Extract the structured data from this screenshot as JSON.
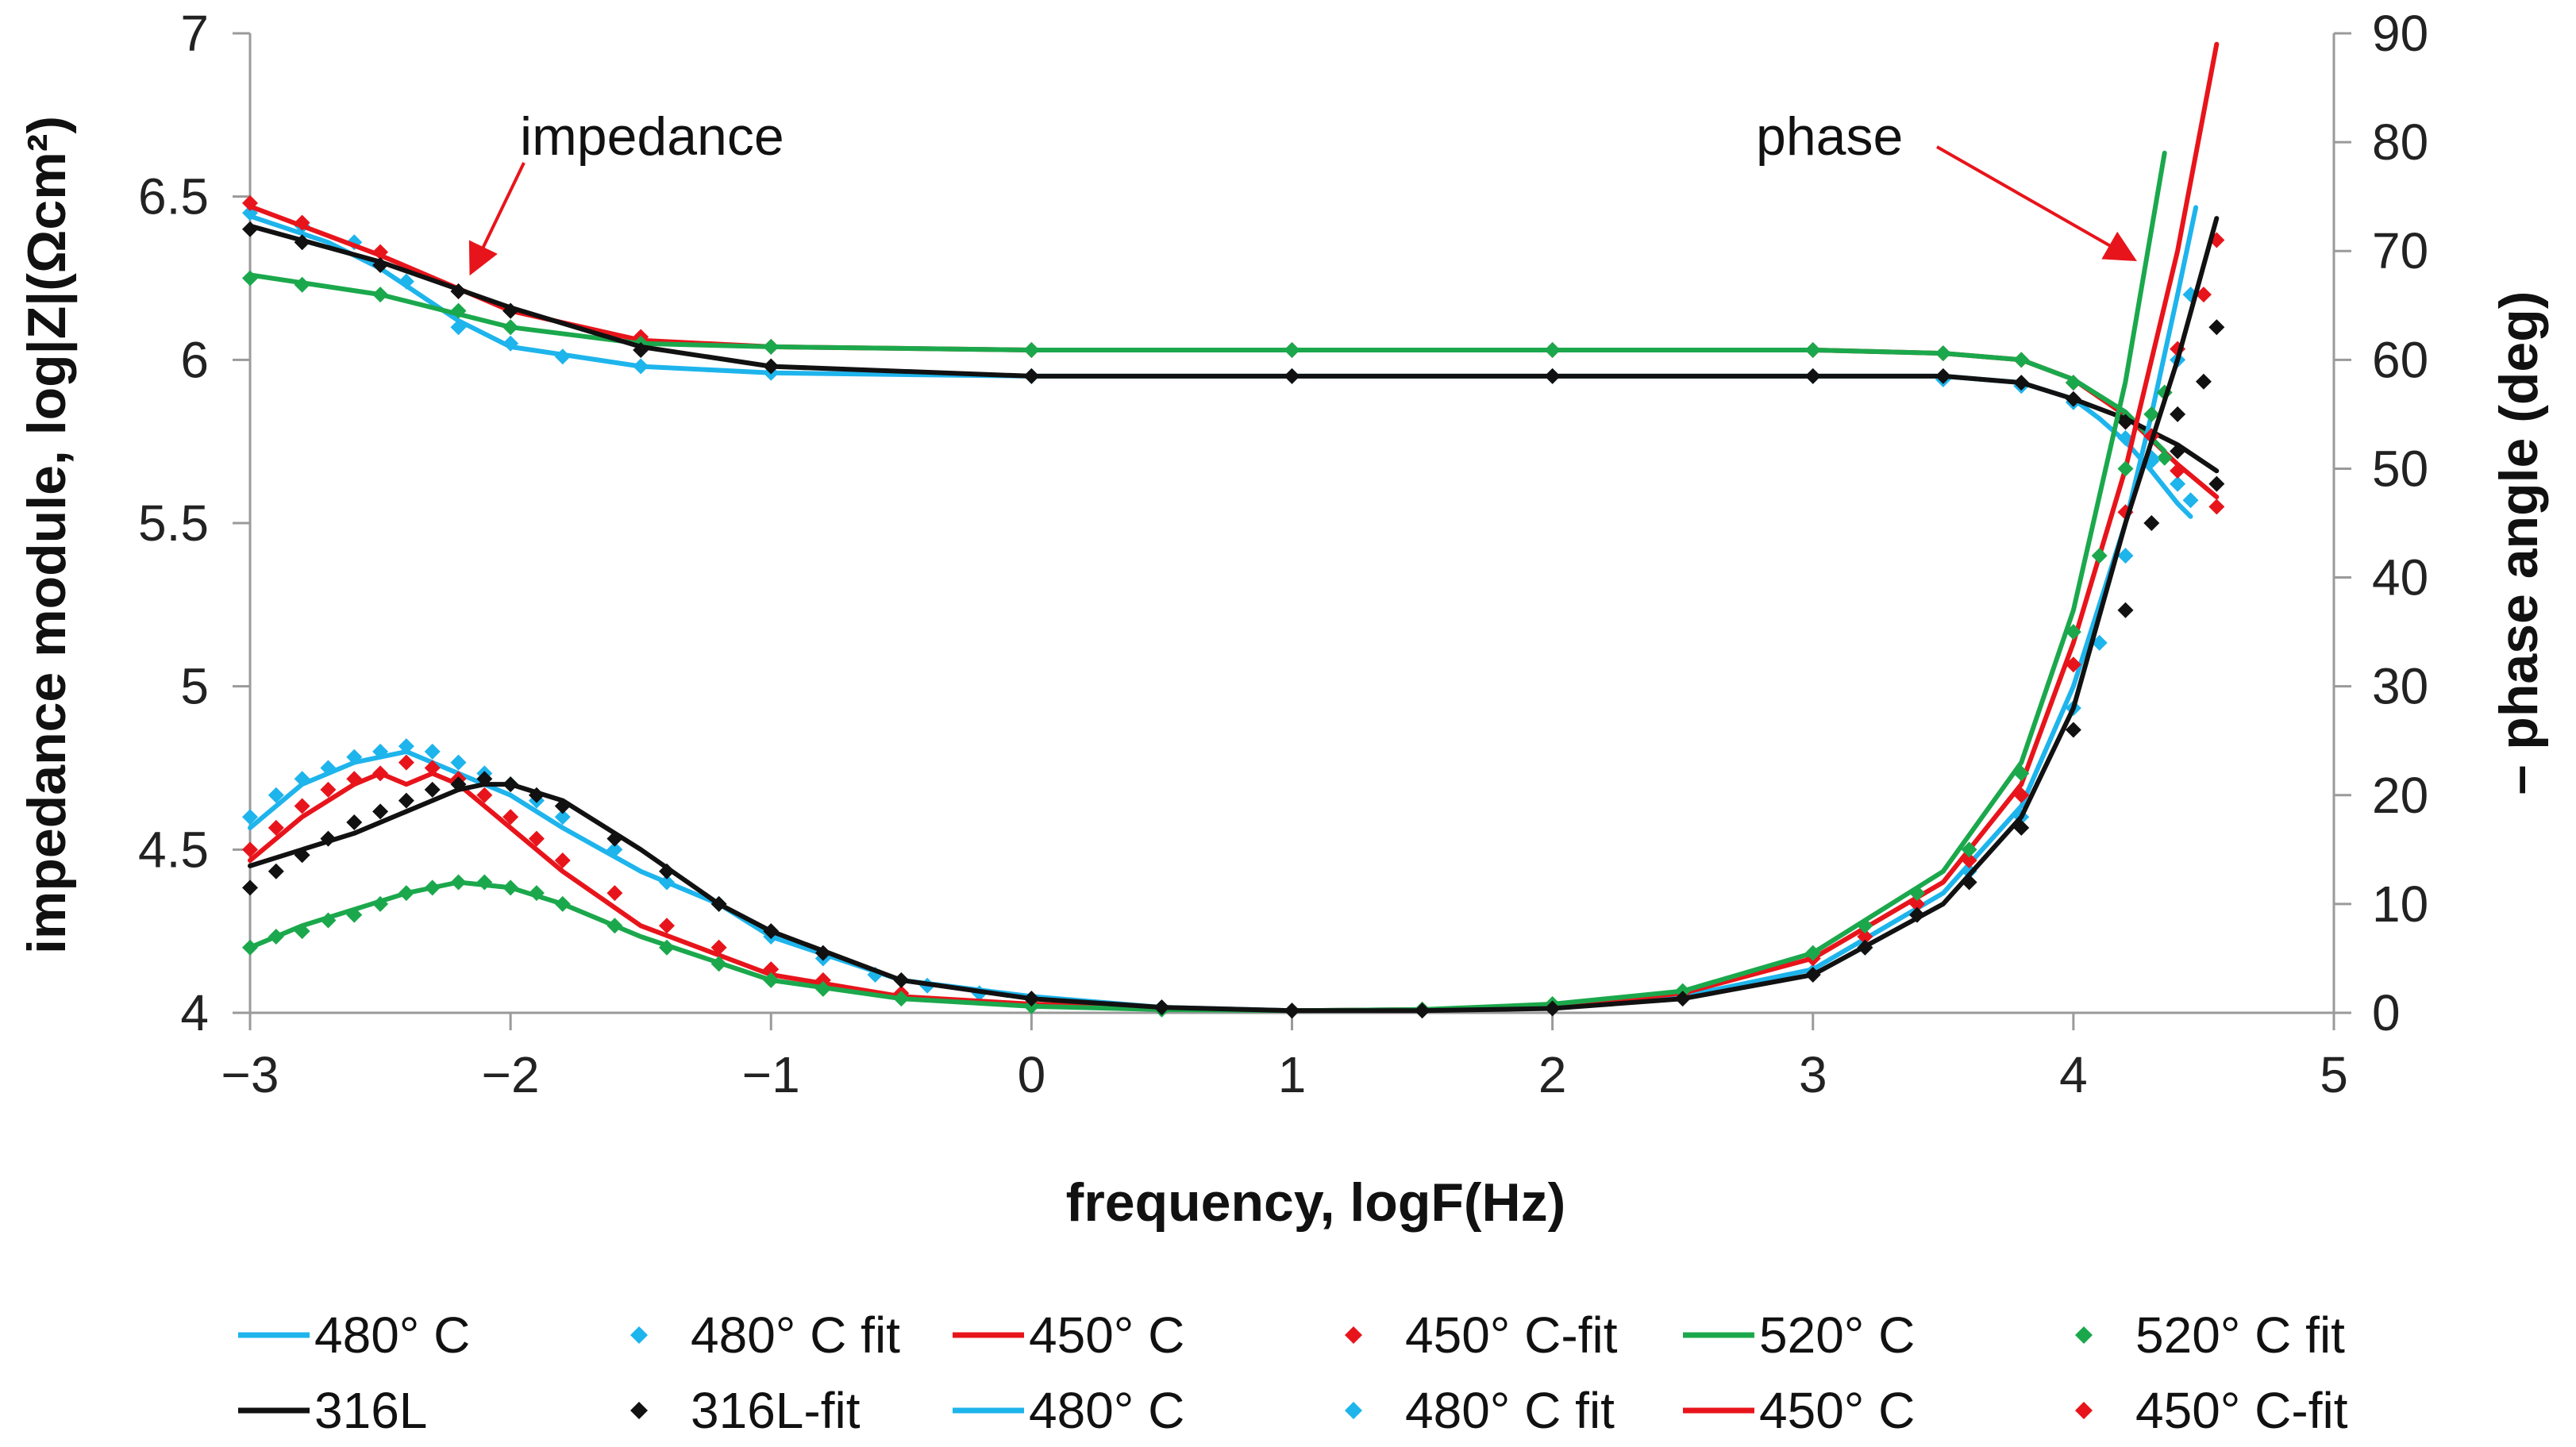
{
  "chart_data": {
    "type": "line",
    "xlabel": "frequency, logF(Hz)",
    "ylabel": "impedance module, log|Z|(Ωcm²)",
    "y2label": "– phase angle (deg)",
    "xlim": [
      -3,
      5
    ],
    "ylim": [
      4,
      7
    ],
    "y2lim": [
      0,
      90
    ],
    "x_ticks": [
      "−3",
      "−2",
      "−1",
      "0",
      "1",
      "2",
      "3",
      "4",
      "5"
    ],
    "y_ticks": [
      "4",
      "4.5",
      "5",
      "5.5",
      "6",
      "6.5",
      "7"
    ],
    "y2_ticks": [
      "0",
      "10",
      "20",
      "30",
      "40",
      "50",
      "60",
      "70",
      "80",
      "90"
    ],
    "grid": false,
    "legend_position": "bottom",
    "annotations": [
      {
        "text": "impedance",
        "target": "impedance curves"
      },
      {
        "text": "phase",
        "target": "phase curves"
      }
    ],
    "series": [
      {
        "name": "480° C",
        "kind": "line",
        "axis": "impedance",
        "color": "#1EB4EC",
        "x": [
          -3,
          -2.7,
          -2.5,
          -2.2,
          -2,
          -1.5,
          -1,
          0,
          1,
          2,
          3,
          3.5,
          3.8,
          4.0,
          4.1,
          4.2,
          4.3,
          4.4,
          4.45
        ],
        "y": [
          6.44,
          6.36,
          6.28,
          6.12,
          6.04,
          5.98,
          5.96,
          5.95,
          5.95,
          5.95,
          5.95,
          5.95,
          5.93,
          5.88,
          5.82,
          5.75,
          5.66,
          5.56,
          5.52
        ]
      },
      {
        "name": "480° C fit",
        "kind": "marker",
        "axis": "impedance",
        "color": "#1EB4EC",
        "x": [
          -3,
          -2.8,
          -2.6,
          -2.4,
          -2.2,
          -2.0,
          -1.8,
          -1.5,
          -1.0,
          0,
          1,
          2,
          3,
          3.5,
          3.8,
          4.0,
          4.2,
          4.3,
          4.4,
          4.45
        ],
        "y": [
          6.45,
          6.41,
          6.36,
          6.24,
          6.1,
          6.05,
          6.01,
          5.98,
          5.96,
          5.95,
          5.95,
          5.95,
          5.95,
          5.94,
          5.92,
          5.87,
          5.76,
          5.69,
          5.62,
          5.57
        ]
      },
      {
        "name": "450° C",
        "kind": "line",
        "axis": "impedance",
        "color": "#E8141B",
        "x": [
          -3,
          -2.5,
          -2,
          -1.5,
          -1,
          0,
          1,
          2,
          3,
          3.5,
          3.8,
          4.0,
          4.2,
          4.4,
          4.55
        ],
        "y": [
          6.47,
          6.32,
          6.15,
          6.06,
          6.04,
          6.03,
          6.03,
          6.03,
          6.03,
          6.02,
          6.0,
          5.94,
          5.83,
          5.68,
          5.58
        ]
      },
      {
        "name": "450° C-fit",
        "kind": "marker",
        "axis": "impedance",
        "color": "#E8141B",
        "x": [
          -3,
          -2.8,
          -2.5,
          -2.2,
          -2,
          -1.5,
          -1,
          0,
          1,
          2,
          3,
          3.5,
          3.8,
          4.0,
          4.2,
          4.4,
          4.55
        ],
        "y": [
          6.48,
          6.42,
          6.33,
          6.21,
          6.15,
          6.07,
          6.04,
          6.03,
          6.03,
          6.03,
          6.03,
          6.02,
          6.0,
          5.93,
          5.81,
          5.66,
          5.55
        ]
      },
      {
        "name": "520° C",
        "kind": "line",
        "axis": "impedance",
        "color": "#1BA84C",
        "x": [
          -3,
          -2.5,
          -2,
          -1.5,
          -1,
          0,
          1,
          2,
          3,
          3.5,
          3.8,
          4.0,
          4.2,
          4.35
        ],
        "y": [
          6.26,
          6.2,
          6.1,
          6.05,
          6.04,
          6.03,
          6.03,
          6.03,
          6.03,
          6.02,
          6.0,
          5.94,
          5.84,
          5.72
        ]
      },
      {
        "name": "520° C fit",
        "kind": "marker",
        "axis": "impedance",
        "color": "#1BA84C",
        "x": [
          -3,
          -2.8,
          -2.5,
          -2.2,
          -2,
          -1.5,
          -1,
          0,
          1,
          2,
          3,
          3.5,
          3.8,
          4.0,
          4.2,
          4.35
        ],
        "y": [
          6.25,
          6.23,
          6.2,
          6.15,
          6.1,
          6.05,
          6.04,
          6.03,
          6.03,
          6.03,
          6.03,
          6.02,
          6.0,
          5.93,
          5.82,
          5.7
        ]
      },
      {
        "name": "316L",
        "kind": "line",
        "axis": "impedance",
        "color": "#111111",
        "x": [
          -3,
          -2.5,
          -2,
          -1.5,
          -1,
          0,
          1,
          2,
          3,
          3.5,
          3.8,
          4.0,
          4.2,
          4.4,
          4.55
        ],
        "y": [
          6.41,
          6.3,
          6.16,
          6.04,
          5.98,
          5.95,
          5.95,
          5.95,
          5.95,
          5.95,
          5.93,
          5.88,
          5.82,
          5.74,
          5.66
        ]
      },
      {
        "name": "316L-fit",
        "kind": "marker",
        "axis": "impedance",
        "color": "#111111",
        "x": [
          -3,
          -2.8,
          -2.5,
          -2.2,
          -2,
          -1.5,
          -1,
          0,
          1,
          2,
          3,
          3.5,
          3.8,
          4.0,
          4.2,
          4.4,
          4.55
        ],
        "y": [
          6.4,
          6.36,
          6.29,
          6.21,
          6.15,
          6.03,
          5.98,
          5.95,
          5.95,
          5.95,
          5.95,
          5.95,
          5.93,
          5.88,
          5.81,
          5.72,
          5.62
        ]
      },
      {
        "name": "480° C",
        "kind": "line",
        "axis": "phase",
        "color": "#1EB4EC",
        "x": [
          -3,
          -2.8,
          -2.6,
          -2.4,
          -2.2,
          -2,
          -1.8,
          -1.5,
          -1.2,
          -1,
          -0.5,
          0,
          0.5,
          1,
          1.5,
          2,
          2.5,
          3,
          3.5,
          3.8,
          4.0,
          4.2,
          4.3,
          4.4,
          4.47
        ],
        "y": [
          17,
          21,
          23,
          24,
          22,
          20,
          17,
          13,
          10,
          7,
          3,
          1.5,
          0.5,
          0.2,
          0.3,
          0.5,
          1.5,
          4,
          11,
          19,
          30,
          45,
          55,
          66,
          74
        ]
      },
      {
        "name": "480° C fit",
        "kind": "marker",
        "axis": "phase",
        "color": "#1EB4EC",
        "x": [
          -3,
          -2.9,
          -2.8,
          -2.7,
          -2.6,
          -2.5,
          -2.4,
          -2.3,
          -2.2,
          -2.1,
          -2,
          -1.9,
          -1.8,
          -1.6,
          -1.4,
          -1.2,
          -1,
          -0.8,
          -0.6,
          -0.4,
          -0.2,
          0,
          0.5,
          1,
          1.5,
          2,
          2.5,
          3,
          3.2,
          3.4,
          3.6,
          3.8,
          4.0,
          4.1,
          4.2,
          4.3,
          4.4,
          4.45
        ],
        "y": [
          18,
          20,
          21.5,
          22.5,
          23.5,
          24,
          24.5,
          24,
          23,
          22,
          21,
          19.5,
          18,
          15,
          12,
          10,
          7,
          5,
          3.5,
          2.5,
          1.8,
          1.3,
          0.5,
          0.2,
          0.3,
          0.6,
          1.5,
          3.8,
          6,
          9,
          13,
          18,
          28,
          34,
          42,
          51,
          60,
          66
        ]
      },
      {
        "name": "450° C",
        "kind": "line",
        "axis": "phase",
        "color": "#E8141B",
        "x": [
          -3,
          -2.8,
          -2.6,
          -2.5,
          -2.4,
          -2.3,
          -2.2,
          -2.1,
          -2,
          -1.8,
          -1.5,
          -1,
          -0.5,
          0,
          0.5,
          1,
          1.5,
          2,
          2.5,
          3,
          3.5,
          3.8,
          4.0,
          4.2,
          4.4,
          4.55
        ],
        "y": [
          14,
          18,
          21,
          22,
          21,
          22,
          21,
          19,
          17,
          13,
          8,
          3.5,
          1.5,
          0.8,
          0.4,
          0.2,
          0.3,
          0.6,
          1.8,
          5,
          12,
          21,
          34,
          50,
          70,
          89
        ]
      },
      {
        "name": "450° C-fit",
        "kind": "marker",
        "axis": "phase",
        "color": "#E8141B",
        "x": [
          -3,
          -2.9,
          -2.8,
          -2.7,
          -2.6,
          -2.5,
          -2.4,
          -2.3,
          -2.2,
          -2.1,
          -2,
          -1.9,
          -1.8,
          -1.6,
          -1.4,
          -1.2,
          -1,
          -0.8,
          -0.5,
          0,
          0.5,
          1,
          1.5,
          2,
          2.5,
          3,
          3.2,
          3.4,
          3.6,
          3.8,
          4.0,
          4.2,
          4.3,
          4.4,
          4.5,
          4.55
        ],
        "y": [
          15,
          17,
          19,
          20.5,
          21.5,
          22,
          23,
          22.5,
          21.5,
          20,
          18,
          16,
          14,
          11,
          8,
          6,
          4,
          3,
          1.8,
          0.8,
          0.4,
          0.2,
          0.3,
          0.6,
          1.8,
          5,
          7,
          10,
          14,
          20,
          32,
          46,
          53,
          61,
          66,
          71
        ]
      },
      {
        "name": "520° C",
        "kind": "line",
        "axis": "phase",
        "color": "#1BA84C",
        "x": [
          -3,
          -2.8,
          -2.6,
          -2.4,
          -2.2,
          -2,
          -1.8,
          -1.5,
          -1,
          -0.5,
          0,
          0.5,
          1,
          1.5,
          2,
          2.5,
          3,
          3.5,
          3.8,
          4.0,
          4.2,
          4.35
        ],
        "y": [
          6,
          8,
          9.5,
          11,
          12,
          11.5,
          10,
          7,
          3,
          1.3,
          0.6,
          0.3,
          0.2,
          0.3,
          0.8,
          2,
          5.5,
          13,
          23,
          37,
          58,
          79
        ]
      },
      {
        "name": "520° C fit",
        "kind": "marker",
        "axis": "phase",
        "color": "#1BA84C",
        "x": [
          -3,
          -2.9,
          -2.8,
          -2.7,
          -2.6,
          -2.5,
          -2.4,
          -2.3,
          -2.2,
          -2.1,
          -2,
          -1.9,
          -1.8,
          -1.6,
          -1.4,
          -1.2,
          -1,
          -0.8,
          -0.5,
          0,
          0.5,
          1,
          1.5,
          2,
          2.5,
          3,
          3.2,
          3.4,
          3.6,
          3.8,
          4.0,
          4.1,
          4.2,
          4.3,
          4.35
        ],
        "y": [
          6,
          7,
          7.5,
          8.5,
          9,
          10,
          11,
          11.5,
          12,
          12,
          11.5,
          11,
          10,
          8,
          6,
          4.5,
          3,
          2.2,
          1.3,
          0.6,
          0.3,
          0.2,
          0.3,
          0.8,
          2,
          5.5,
          8,
          11,
          15,
          22,
          35,
          42,
          50,
          55,
          57
        ]
      },
      {
        "name": "316L",
        "kind": "line",
        "axis": "phase",
        "color": "#111111",
        "x": [
          -3,
          -2.8,
          -2.6,
          -2.4,
          -2.2,
          -2.1,
          -2,
          -1.8,
          -1.5,
          -1.2,
          -1,
          -0.5,
          0,
          0.5,
          1,
          1.5,
          2,
          2.5,
          3,
          3.5,
          3.8,
          4.0,
          4.2,
          4.4,
          4.55
        ],
        "y": [
          13.5,
          15,
          16.5,
          18.5,
          20.5,
          21,
          21,
          19.5,
          15,
          10,
          7.5,
          3,
          1.3,
          0.5,
          0.2,
          0.2,
          0.4,
          1.3,
          3.5,
          10,
          18,
          28,
          45,
          60,
          73
        ]
      },
      {
        "name": "316L-fit",
        "kind": "marker",
        "axis": "phase",
        "color": "#111111",
        "x": [
          -3,
          -2.9,
          -2.8,
          -2.7,
          -2.6,
          -2.5,
          -2.4,
          -2.3,
          -2.2,
          -2.1,
          -2,
          -1.9,
          -1.8,
          -1.6,
          -1.4,
          -1.2,
          -1,
          -0.8,
          -0.5,
          0,
          0.5,
          1,
          1.5,
          2,
          2.5,
          3,
          3.2,
          3.4,
          3.6,
          3.8,
          4.0,
          4.2,
          4.3,
          4.4,
          4.5,
          4.55
        ],
        "y": [
          11.5,
          13,
          14.5,
          16,
          17.5,
          18.5,
          19.5,
          20.5,
          21,
          21.5,
          21,
          20,
          19,
          16,
          13,
          10,
          7.5,
          5.5,
          3,
          1.3,
          0.5,
          0.2,
          0.2,
          0.4,
          1.3,
          3.5,
          6,
          9,
          12,
          17,
          26,
          37,
          45,
          55,
          58,
          63
        ]
      }
    ],
    "legend": [
      {
        "label": "480° C",
        "kind": "line",
        "color": "#1EB4EC"
      },
      {
        "label": "480° C fit",
        "kind": "marker",
        "color": "#1EB4EC"
      },
      {
        "label": "450° C",
        "kind": "line",
        "color": "#E8141B"
      },
      {
        "label": "450° C-fit",
        "kind": "marker",
        "color": "#E8141B"
      },
      {
        "label": "520° C",
        "kind": "line",
        "color": "#1BA84C"
      },
      {
        "label": "520° C fit",
        "kind": "marker",
        "color": "#1BA84C"
      },
      {
        "label": "316L",
        "kind": "line",
        "color": "#111111"
      },
      {
        "label": "316L-fit",
        "kind": "marker",
        "color": "#111111"
      },
      {
        "label": "480° C",
        "kind": "line",
        "color": "#1EB4EC"
      },
      {
        "label": "480° C fit",
        "kind": "marker",
        "color": "#1EB4EC"
      },
      {
        "label": "450° C",
        "kind": "line",
        "color": "#E8141B"
      },
      {
        "label": "450° C-fit",
        "kind": "marker",
        "color": "#E8141B"
      }
    ]
  }
}
